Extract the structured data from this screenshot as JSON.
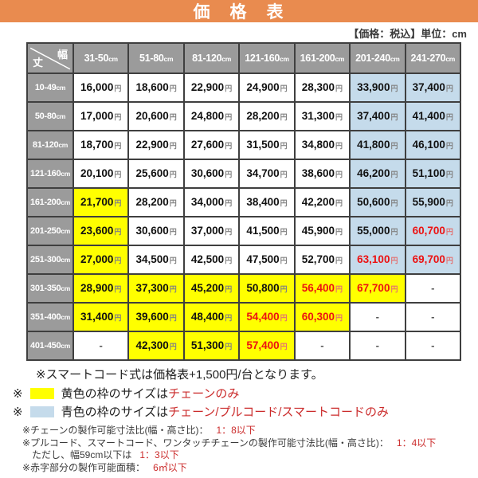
{
  "header": {
    "title": "価　格　表",
    "tax_note": "【価格：税込】単位：cm"
  },
  "colors": {
    "accent_orange": "#E98B4F",
    "header_gray": "#9B9B9B",
    "highlight_yellow": "#FFFF00",
    "highlight_blue": "#C5DBEB",
    "price_red": "#EC1212",
    "note_red": "#CB2B2B"
  },
  "table": {
    "corner": {
      "width_label": "幅",
      "height_label": "丈"
    },
    "currency_suffix": "円",
    "columns": [
      {
        "range": "31-50",
        "unit": "cm"
      },
      {
        "range": "51-80",
        "unit": "cm"
      },
      {
        "range": "81-120",
        "unit": "cm"
      },
      {
        "range": "121-160",
        "unit": "cm"
      },
      {
        "range": "161-200",
        "unit": "cm"
      },
      {
        "range": "201-240",
        "unit": "cm"
      },
      {
        "range": "241-270",
        "unit": "cm"
      }
    ],
    "rows": [
      {
        "label": {
          "range": "10-49",
          "unit": "cm"
        },
        "cells": [
          {
            "value": "16,000",
            "bg": "plain",
            "red": false
          },
          {
            "value": "18,600",
            "bg": "plain",
            "red": false
          },
          {
            "value": "22,900",
            "bg": "plain",
            "red": false
          },
          {
            "value": "24,900",
            "bg": "plain",
            "red": false
          },
          {
            "value": "28,300",
            "bg": "plain",
            "red": false
          },
          {
            "value": "33,900",
            "bg": "blue",
            "red": false
          },
          {
            "value": "37,400",
            "bg": "blue",
            "red": false
          }
        ]
      },
      {
        "label": {
          "range": "50-80",
          "unit": "cm"
        },
        "cells": [
          {
            "value": "17,000",
            "bg": "plain",
            "red": false
          },
          {
            "value": "20,600",
            "bg": "plain",
            "red": false
          },
          {
            "value": "24,800",
            "bg": "plain",
            "red": false
          },
          {
            "value": "28,200",
            "bg": "plain",
            "red": false
          },
          {
            "value": "31,300",
            "bg": "plain",
            "red": false
          },
          {
            "value": "37,400",
            "bg": "blue",
            "red": false
          },
          {
            "value": "41,400",
            "bg": "blue",
            "red": false
          }
        ]
      },
      {
        "label": {
          "range": "81-120",
          "unit": "cm"
        },
        "cells": [
          {
            "value": "18,700",
            "bg": "plain",
            "red": false
          },
          {
            "value": "22,900",
            "bg": "plain",
            "red": false
          },
          {
            "value": "27,600",
            "bg": "plain",
            "red": false
          },
          {
            "value": "31,500",
            "bg": "plain",
            "red": false
          },
          {
            "value": "34,800",
            "bg": "plain",
            "red": false
          },
          {
            "value": "41,800",
            "bg": "blue",
            "red": false
          },
          {
            "value": "46,100",
            "bg": "blue",
            "red": false
          }
        ]
      },
      {
        "label": {
          "range": "121-160",
          "unit": "cm"
        },
        "cells": [
          {
            "value": "20,100",
            "bg": "plain",
            "red": false
          },
          {
            "value": "25,600",
            "bg": "plain",
            "red": false
          },
          {
            "value": "30,600",
            "bg": "plain",
            "red": false
          },
          {
            "value": "34,700",
            "bg": "plain",
            "red": false
          },
          {
            "value": "38,600",
            "bg": "plain",
            "red": false
          },
          {
            "value": "46,200",
            "bg": "blue",
            "red": false
          },
          {
            "value": "51,100",
            "bg": "blue",
            "red": false
          }
        ]
      },
      {
        "label": {
          "range": "161-200",
          "unit": "cm"
        },
        "cells": [
          {
            "value": "21,700",
            "bg": "yellow",
            "red": false
          },
          {
            "value": "28,200",
            "bg": "plain",
            "red": false
          },
          {
            "value": "34,000",
            "bg": "plain",
            "red": false
          },
          {
            "value": "38,400",
            "bg": "plain",
            "red": false
          },
          {
            "value": "42,200",
            "bg": "plain",
            "red": false
          },
          {
            "value": "50,600",
            "bg": "blue",
            "red": false
          },
          {
            "value": "55,900",
            "bg": "blue",
            "red": false
          }
        ]
      },
      {
        "label": {
          "range": "201-250",
          "unit": "cm"
        },
        "cells": [
          {
            "value": "23,600",
            "bg": "yellow",
            "red": false
          },
          {
            "value": "30,600",
            "bg": "plain",
            "red": false
          },
          {
            "value": "37,000",
            "bg": "plain",
            "red": false
          },
          {
            "value": "41,500",
            "bg": "plain",
            "red": false
          },
          {
            "value": "45,900",
            "bg": "plain",
            "red": false
          },
          {
            "value": "55,000",
            "bg": "blue",
            "red": false
          },
          {
            "value": "60,700",
            "bg": "blue",
            "red": true
          }
        ]
      },
      {
        "label": {
          "range": "251-300",
          "unit": "cm"
        },
        "cells": [
          {
            "value": "27,000",
            "bg": "yellow",
            "red": false
          },
          {
            "value": "34,500",
            "bg": "plain",
            "red": false
          },
          {
            "value": "42,500",
            "bg": "plain",
            "red": false
          },
          {
            "value": "47,500",
            "bg": "plain",
            "red": false
          },
          {
            "value": "52,700",
            "bg": "plain",
            "red": false
          },
          {
            "value": "63,100",
            "bg": "blue",
            "red": true
          },
          {
            "value": "69,700",
            "bg": "blue",
            "red": true
          }
        ]
      },
      {
        "label": {
          "range": "301-350",
          "unit": "cm"
        },
        "cells": [
          {
            "value": "28,900",
            "bg": "yellow",
            "red": false
          },
          {
            "value": "37,300",
            "bg": "yellow",
            "red": false
          },
          {
            "value": "45,200",
            "bg": "yellow",
            "red": false
          },
          {
            "value": "50,800",
            "bg": "yellow",
            "red": false
          },
          {
            "value": "56,400",
            "bg": "yellow",
            "red": true
          },
          {
            "value": "67,700",
            "bg": "yellow",
            "red": true
          },
          {
            "value": "-",
            "bg": "plain",
            "red": false
          }
        ]
      },
      {
        "label": {
          "range": "351-400",
          "unit": "cm"
        },
        "cells": [
          {
            "value": "31,400",
            "bg": "yellow",
            "red": false
          },
          {
            "value": "39,600",
            "bg": "yellow",
            "red": false
          },
          {
            "value": "48,400",
            "bg": "yellow",
            "red": false
          },
          {
            "value": "54,400",
            "bg": "yellow",
            "red": true
          },
          {
            "value": "60,300",
            "bg": "yellow",
            "red": true
          },
          {
            "value": "-",
            "bg": "plain",
            "red": false
          },
          {
            "value": "-",
            "bg": "plain",
            "red": false
          }
        ]
      },
      {
        "label": {
          "range": "401-450",
          "unit": "cm"
        },
        "cells": [
          {
            "value": "-",
            "bg": "plain",
            "red": false
          },
          {
            "value": "42,300",
            "bg": "yellow",
            "red": false
          },
          {
            "value": "51,300",
            "bg": "yellow",
            "red": false
          },
          {
            "value": "57,400",
            "bg": "yellow",
            "red": true
          },
          {
            "value": "-",
            "bg": "plain",
            "red": false
          },
          {
            "value": "-",
            "bg": "plain",
            "red": false
          },
          {
            "value": "-",
            "bg": "plain",
            "red": false
          }
        ]
      }
    ]
  },
  "notes": {
    "smartcode": "※スマートコード式は価格表+1,500円/台となります。",
    "legend": [
      {
        "marker": "※",
        "swatch": "yellow",
        "label": "黄色の枠のサイズは",
        "highlight": "チェーンのみ"
      },
      {
        "marker": "※",
        "swatch": "blue",
        "label": "青色の枠のサイズは",
        "highlight": "チェーン/プルコード/スマートコードのみ"
      }
    ],
    "small": [
      {
        "text": "※チェーンの製作可能寸法比(幅・高さ比)：",
        "red": "1：8以下"
      },
      {
        "text": "※プルコード、スマートコード、ワンタッチチェーンの製作可能寸法比(幅・高さ比)：",
        "red": "1：4以下"
      },
      {
        "text": "ただし、幅59cm以下は",
        "red": "1：3以下"
      },
      {
        "text": "※赤字部分の製作可能面積：",
        "red": "6㎡以下"
      }
    ]
  }
}
